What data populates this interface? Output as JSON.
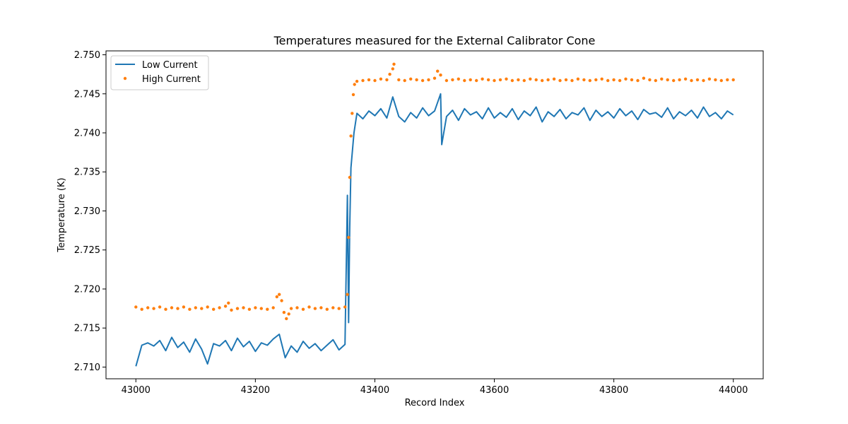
{
  "chart_data": {
    "type": "line",
    "title": "Temperatures measured for the External Calibrator Cone",
    "xlabel": "Record Index",
    "ylabel": "Temperature (K)",
    "xlim": [
      42950,
      44050
    ],
    "ylim": [
      2.7085,
      2.7505
    ],
    "xticks": [
      43000,
      43200,
      43400,
      43600,
      43800,
      44000
    ],
    "yticks": [
      2.71,
      2.715,
      2.72,
      2.725,
      2.73,
      2.735,
      2.74,
      2.745,
      2.75
    ],
    "ytick_labels": [
      "2.710",
      "2.715",
      "2.720",
      "2.725",
      "2.730",
      "2.735",
      "2.740",
      "2.745",
      "2.750"
    ],
    "xtick_labels": [
      "43000",
      "43200",
      "43400",
      "43600",
      "43800",
      "44000"
    ],
    "grid": false,
    "legend_position": "top-left",
    "series": [
      {
        "name": "Low Current",
        "kind": "line",
        "color": "#1f77b4",
        "x": [
          43000,
          43010,
          43020,
          43030,
          43040,
          43050,
          43060,
          43070,
          43080,
          43090,
          43100,
          43110,
          43120,
          43130,
          43140,
          43150,
          43160,
          43170,
          43180,
          43190,
          43200,
          43210,
          43220,
          43230,
          43240,
          43250,
          43260,
          43270,
          43280,
          43290,
          43300,
          43310,
          43320,
          43330,
          43340,
          43350,
          43354,
          43356,
          43358,
          43360,
          43365,
          43370,
          43380,
          43390,
          43400,
          43410,
          43420,
          43430,
          43440,
          43450,
          43460,
          43470,
          43480,
          43490,
          43500,
          43510,
          43512,
          43520,
          43530,
          43540,
          43550,
          43560,
          43570,
          43580,
          43590,
          43600,
          43610,
          43620,
          43630,
          43640,
          43650,
          43660,
          43670,
          43680,
          43690,
          43700,
          43710,
          43720,
          43730,
          43740,
          43750,
          43760,
          43770,
          43780,
          43790,
          43800,
          43810,
          43820,
          43830,
          43840,
          43850,
          43860,
          43870,
          43880,
          43890,
          43900,
          43910,
          43920,
          43930,
          43940,
          43950,
          43960,
          43970,
          43980,
          43990,
          44000
        ],
        "values": [
          2.7101,
          2.7128,
          2.7131,
          2.7127,
          2.7134,
          2.7121,
          2.7138,
          2.7125,
          2.7132,
          2.7119,
          2.7136,
          2.7123,
          2.7104,
          2.713,
          2.7127,
          2.7134,
          2.7121,
          2.7137,
          2.7126,
          2.7133,
          2.712,
          2.7131,
          2.7128,
          2.7136,
          2.7142,
          2.7112,
          2.7127,
          2.7119,
          2.7133,
          2.7124,
          2.713,
          2.7121,
          2.7128,
          2.7135,
          2.7122,
          2.7129,
          2.732,
          2.7157,
          2.7279,
          2.7355,
          2.74,
          2.7425,
          2.7418,
          2.7428,
          2.7422,
          2.7431,
          2.7419,
          2.7446,
          2.7421,
          2.7414,
          2.7426,
          2.7419,
          2.7432,
          2.7422,
          2.7428,
          2.745,
          2.7385,
          2.7421,
          2.7429,
          2.7416,
          2.7431,
          2.7423,
          2.7427,
          2.7418,
          2.7432,
          2.7419,
          2.7426,
          2.742,
          2.7431,
          2.7417,
          2.7428,
          2.7422,
          2.7433,
          2.7414,
          2.7427,
          2.7421,
          2.743,
          2.7418,
          2.7426,
          2.7423,
          2.7432,
          2.7416,
          2.7429,
          2.7421,
          2.7427,
          2.7419,
          2.7431,
          2.7422,
          2.7428,
          2.7417,
          2.743,
          2.7424,
          2.7426,
          2.742,
          2.7432,
          2.7418,
          2.7427,
          2.7422,
          2.7429,
          2.7419,
          2.7433,
          2.7421,
          2.7426,
          2.7418,
          2.7428,
          2.7423
        ]
      },
      {
        "name": "High Current",
        "kind": "scatter",
        "color": "#ff7f0e",
        "x": [
          43000,
          43010,
          43020,
          43030,
          43040,
          43050,
          43060,
          43070,
          43080,
          43090,
          43100,
          43110,
          43120,
          43130,
          43140,
          43150,
          43155,
          43160,
          43170,
          43180,
          43190,
          43200,
          43210,
          43220,
          43230,
          43236,
          43240,
          43244,
          43248,
          43252,
          43256,
          43260,
          43270,
          43280,
          43290,
          43300,
          43310,
          43320,
          43330,
          43340,
          43350,
          43354,
          43356,
          43358,
          43360,
          43362,
          43364,
          43366,
          43370,
          43380,
          43390,
          43400,
          43410,
          43420,
          43425,
          43430,
          43432,
          43440,
          43450,
          43460,
          43470,
          43480,
          43490,
          43500,
          43505,
          43510,
          43520,
          43530,
          43540,
          43550,
          43560,
          43570,
          43580,
          43590,
          43600,
          43610,
          43620,
          43630,
          43640,
          43650,
          43660,
          43670,
          43680,
          43690,
          43700,
          43710,
          43720,
          43730,
          43740,
          43750,
          43760,
          43770,
          43780,
          43790,
          43800,
          43810,
          43820,
          43830,
          43840,
          43850,
          43860,
          43870,
          43880,
          43890,
          43900,
          43910,
          43920,
          43930,
          43940,
          43950,
          43960,
          43970,
          43980,
          43990,
          44000
        ],
        "values": [
          2.7177,
          2.7174,
          2.7176,
          2.7175,
          2.7177,
          2.7174,
          2.7176,
          2.7175,
          2.7177,
          2.7174,
          2.7176,
          2.7175,
          2.7177,
          2.7174,
          2.7176,
          2.7178,
          2.7182,
          2.7173,
          2.7175,
          2.7176,
          2.7174,
          2.7176,
          2.7175,
          2.7174,
          2.7176,
          2.719,
          2.7193,
          2.7185,
          2.717,
          2.7162,
          2.7168,
          2.7175,
          2.7176,
          2.7174,
          2.7177,
          2.7175,
          2.7176,
          2.7174,
          2.7176,
          2.7175,
          2.7177,
          2.7193,
          2.7266,
          2.7343,
          2.7396,
          2.7425,
          2.7449,
          2.7462,
          2.7466,
          2.7467,
          2.7468,
          2.7467,
          2.7469,
          2.7468,
          2.7475,
          2.7482,
          2.7488,
          2.7468,
          2.7467,
          2.7469,
          2.7468,
          2.7467,
          2.7468,
          2.747,
          2.7479,
          2.7474,
          2.7467,
          2.7468,
          2.7469,
          2.7467,
          2.7468,
          2.7467,
          2.7469,
          2.7468,
          2.7467,
          2.7468,
          2.7469,
          2.7467,
          2.7468,
          2.7467,
          2.7469,
          2.7468,
          2.7467,
          2.7468,
          2.7469,
          2.7467,
          2.7468,
          2.7467,
          2.7469,
          2.7468,
          2.7467,
          2.7468,
          2.7469,
          2.7467,
          2.7468,
          2.7467,
          2.7469,
          2.7468,
          2.7467,
          2.747,
          2.7468,
          2.7467,
          2.7469,
          2.7468,
          2.7467,
          2.7468,
          2.7469,
          2.7467,
          2.7468,
          2.7467,
          2.7469,
          2.7468,
          2.7467,
          2.7468,
          2.7468
        ]
      }
    ]
  }
}
